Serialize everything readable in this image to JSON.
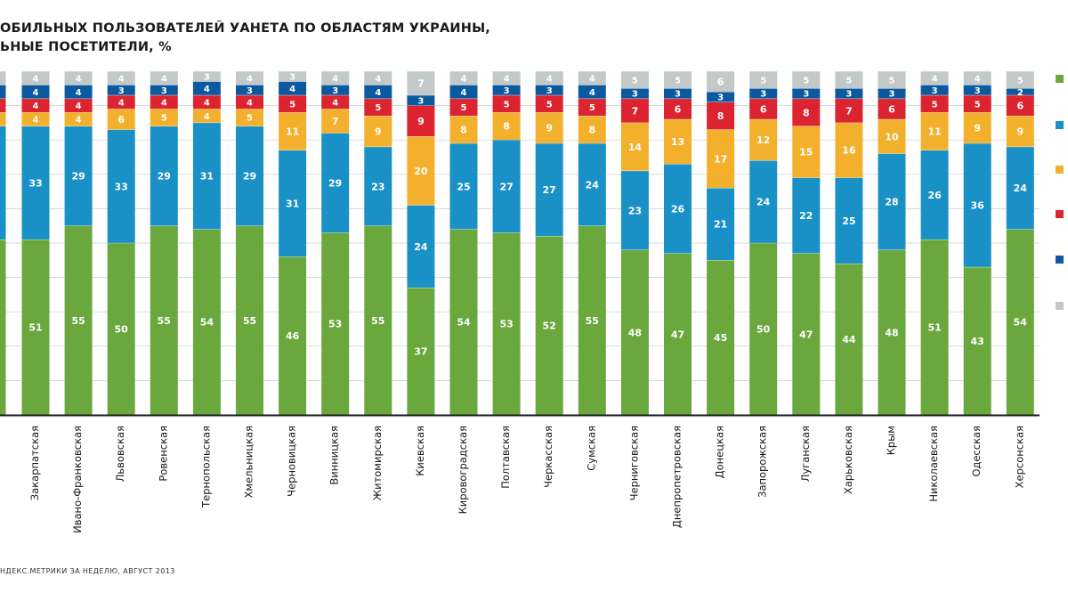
{
  "title_lines": [
    "ОБИЛЬНЫХ ПОЛЬЗОВАТЕЛЕЙ УАНЕТА ПО ОБЛАСТЯМ УКРАИНЫ,",
    "ЬНЫЕ ПОСЕТИТЕЛИ, %"
  ],
  "source": "НДЕКС.МЕТРИКИ ЗА НЕДЕЛЮ, АВГУСТ 2013",
  "legend_colors": [
    "#6aa83e",
    "#1a91c6",
    "#f3b02d",
    "#dc2330",
    "#0b5aa0",
    "#c3c8c8"
  ],
  "chart_data": {
    "type": "bar",
    "stacked": true,
    "ylim": [
      0,
      100
    ],
    "categories": [
      "Закарпатская",
      "Ивано-Франковская",
      "Львовская",
      "Ровенская",
      "Тернопольская",
      "Хмельницкая",
      "Черновицкая",
      "Винницкая",
      "Житомирская",
      "Киевская",
      "Кировоградская",
      "Полтавская",
      "Черкасская",
      "Сумская",
      "Черниговская",
      "Днепропетровская",
      "Донецкая",
      "Запорожская",
      "Луганская",
      "Харьковская",
      "Крым",
      "Николаевская",
      "Одесская",
      "Херсонская"
    ],
    "series": [
      {
        "color": "#6aa83e",
        "values": [
          51,
          55,
          50,
          55,
          54,
          55,
          46,
          53,
          55,
          37,
          54,
          53,
          52,
          55,
          48,
          47,
          45,
          50,
          47,
          44,
          48,
          51,
          43,
          54
        ]
      },
      {
        "color": "#1a91c6",
        "values": [
          33,
          29,
          33,
          29,
          31,
          29,
          31,
          29,
          23,
          24,
          25,
          27,
          27,
          24,
          23,
          26,
          21,
          24,
          22,
          25,
          28,
          26,
          36,
          24
        ]
      },
      {
        "color": "#f3b02d",
        "values": [
          4,
          4,
          6,
          5,
          4,
          5,
          11,
          7,
          9,
          20,
          8,
          8,
          9,
          8,
          14,
          13,
          17,
          12,
          15,
          16,
          10,
          11,
          9,
          9
        ]
      },
      {
        "color": "#dc2330",
        "values": [
          4,
          4,
          4,
          4,
          4,
          4,
          5,
          4,
          5,
          9,
          5,
          5,
          5,
          5,
          7,
          6,
          8,
          6,
          8,
          7,
          6,
          5,
          5,
          6
        ]
      },
      {
        "color": "#0b5aa0",
        "values": [
          4,
          4,
          3,
          3,
          4,
          3,
          4,
          3,
          4,
          3,
          4,
          3,
          3,
          4,
          3,
          3,
          3,
          3,
          3,
          3,
          3,
          3,
          3,
          2
        ]
      },
      {
        "color": "#c3c8c8",
        "values": [
          4,
          4,
          4,
          4,
          3,
          4,
          3,
          4,
          4,
          7,
          4,
          4,
          4,
          4,
          5,
          5,
          6,
          5,
          5,
          5,
          5,
          4,
          4,
          5
        ]
      }
    ],
    "partial_left_bar": {
      "series_values": [
        null,
        null,
        null,
        null,
        null,
        null
      ],
      "visible_labels": [
        "",
        "2",
        "",
        "",
        "",
        ""
      ]
    }
  }
}
